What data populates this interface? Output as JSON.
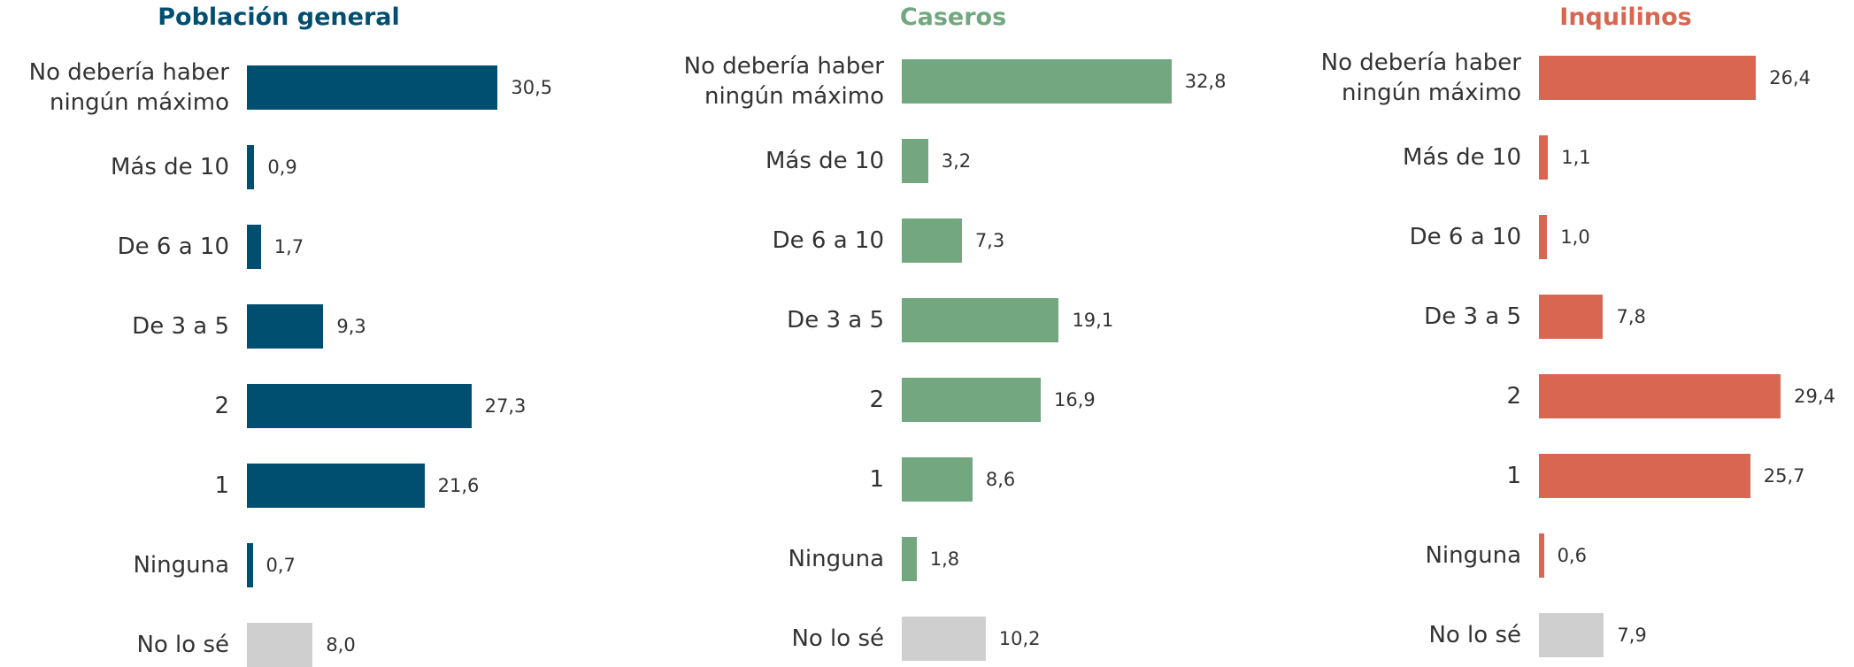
{
  "chart_data": [
    {
      "type": "bar",
      "title": "Población general",
      "color": "#004f71",
      "categories": [
        "No debería haber ningún máximo",
        "Más de 10",
        "De 6 a 10",
        "De 3 a 5",
        "2",
        "1",
        "Ninguna",
        "No lo sé"
      ],
      "values": [
        30.5,
        0.9,
        1.7,
        9.3,
        27.3,
        21.6,
        0.7,
        8.0
      ],
      "value_labels": [
        "30,5",
        "0,9",
        "1,7",
        "9,3",
        "27,3",
        "21,6",
        "0,7",
        "8,0"
      ],
      "colors": [
        "#004f71",
        "#004f71",
        "#004f71",
        "#004f71",
        "#004f71",
        "#004f71",
        "#004f71",
        "#d0cfd0"
      ]
    },
    {
      "type": "bar",
      "title": "Caseros",
      "color": "#72a77f",
      "categories": [
        "No debería haber ningún máximo",
        "Más de 10",
        "De 6 a 10",
        "De 3 a 5",
        "2",
        "1",
        "Ninguna",
        "No lo sé"
      ],
      "values": [
        32.8,
        3.2,
        7.3,
        19.1,
        16.9,
        8.6,
        1.8,
        10.2
      ],
      "value_labels": [
        "32,8",
        "3,2",
        "7,3",
        "19,1",
        "16,9",
        "8,6",
        "1,8",
        "10,2"
      ],
      "colors": [
        "#72a77f",
        "#72a77f",
        "#72a77f",
        "#72a77f",
        "#72a77f",
        "#72a77f",
        "#72a77f",
        "#d0cfd0"
      ]
    },
    {
      "type": "bar",
      "title": "Inquilinos",
      "color": "#d86650",
      "categories": [
        "No debería haber ningún máximo",
        "Más de 10",
        "De 6 a 10",
        "De 3 a 5",
        "2",
        "1",
        "Ninguna",
        "No lo sé"
      ],
      "values": [
        26.4,
        1.1,
        1.0,
        7.8,
        29.4,
        25.7,
        0.6,
        7.9
      ],
      "value_labels": [
        "26,4",
        "1,1",
        "1,0",
        "7,8",
        "29,4",
        "25,7",
        "0,6",
        "7,9"
      ],
      "colors": [
        "#d86650",
        "#d86650",
        "#d86650",
        "#d86650",
        "#d86650",
        "#d86650",
        "#d86650",
        "#d0cfd0"
      ]
    }
  ]
}
